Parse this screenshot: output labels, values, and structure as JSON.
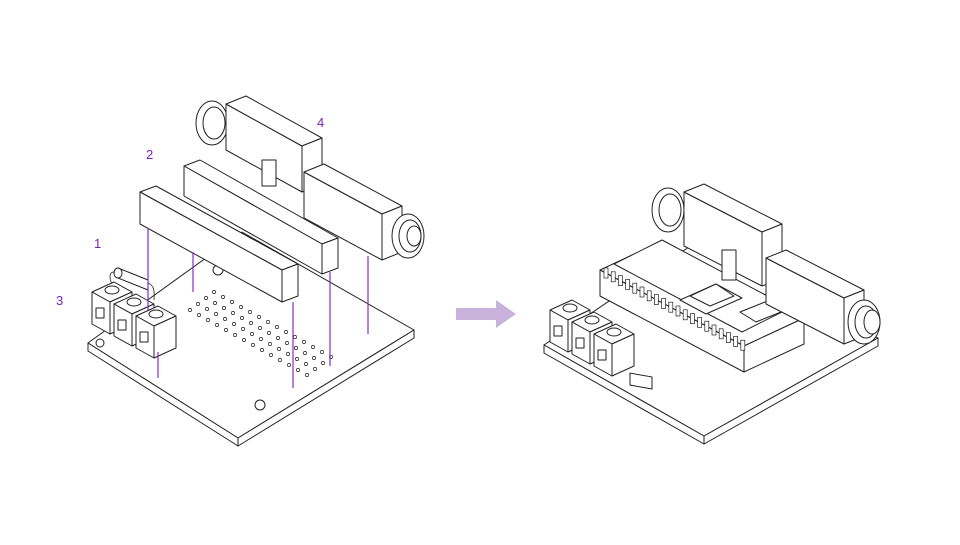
{
  "callouts": {
    "step1": "1",
    "step2": "2",
    "step3": "3",
    "step4": "4"
  },
  "colors": {
    "callout": "#7a22b8",
    "leader_lines": "#8a2cc4",
    "arrow": "#c9b3dc",
    "outline": "#222222"
  },
  "icons": {
    "arrow": "arrow-right-icon"
  }
}
